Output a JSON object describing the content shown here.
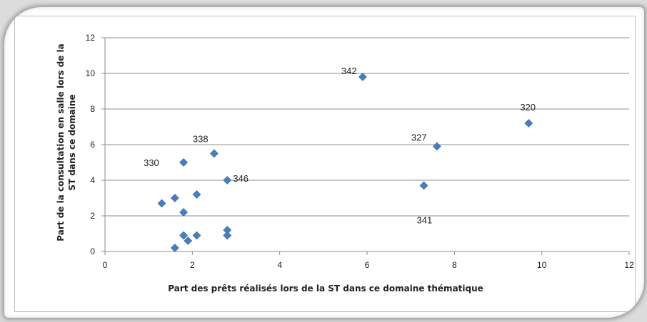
{
  "chart_data": {
    "type": "scatter",
    "title": "",
    "xlabel": "Part des prêts réalisés lors de la ST dans ce domaine thématique",
    "ylabel_line1": "Part de la consultation en salle lors de la",
    "ylabel_line2": "ST dans ce domaine",
    "xlim": [
      0,
      12
    ],
    "ylim": [
      0,
      12
    ],
    "xticks": [
      0,
      2,
      4,
      6,
      8,
      10,
      12
    ],
    "yticks": [
      0,
      2,
      4,
      6,
      8,
      10,
      12
    ],
    "grid": "horizontal",
    "legend": "none",
    "marker": "diamond",
    "color": "#4a7ebb",
    "points": [
      {
        "x": 5.9,
        "y": 9.8,
        "label": "342"
      },
      {
        "x": 9.7,
        "y": 7.2,
        "label": "320"
      },
      {
        "x": 7.6,
        "y": 5.9,
        "label": "327"
      },
      {
        "x": 7.3,
        "y": 3.7,
        "label": "341"
      },
      {
        "x": 2.5,
        "y": 5.5,
        "label": "338"
      },
      {
        "x": 1.8,
        "y": 5.0,
        "label": "330"
      },
      {
        "x": 2.8,
        "y": 4.0,
        "label": "346"
      },
      {
        "x": 1.3,
        "y": 2.7,
        "label": ""
      },
      {
        "x": 1.6,
        "y": 3.0,
        "label": ""
      },
      {
        "x": 2.1,
        "y": 3.2,
        "label": ""
      },
      {
        "x": 1.8,
        "y": 2.2,
        "label": ""
      },
      {
        "x": 2.8,
        "y": 1.2,
        "label": ""
      },
      {
        "x": 2.8,
        "y": 0.9,
        "label": ""
      },
      {
        "x": 1.8,
        "y": 0.9,
        "label": ""
      },
      {
        "x": 2.1,
        "y": 0.9,
        "label": ""
      },
      {
        "x": 1.9,
        "y": 0.6,
        "label": ""
      },
      {
        "x": 1.6,
        "y": 0.2,
        "label": ""
      }
    ]
  }
}
